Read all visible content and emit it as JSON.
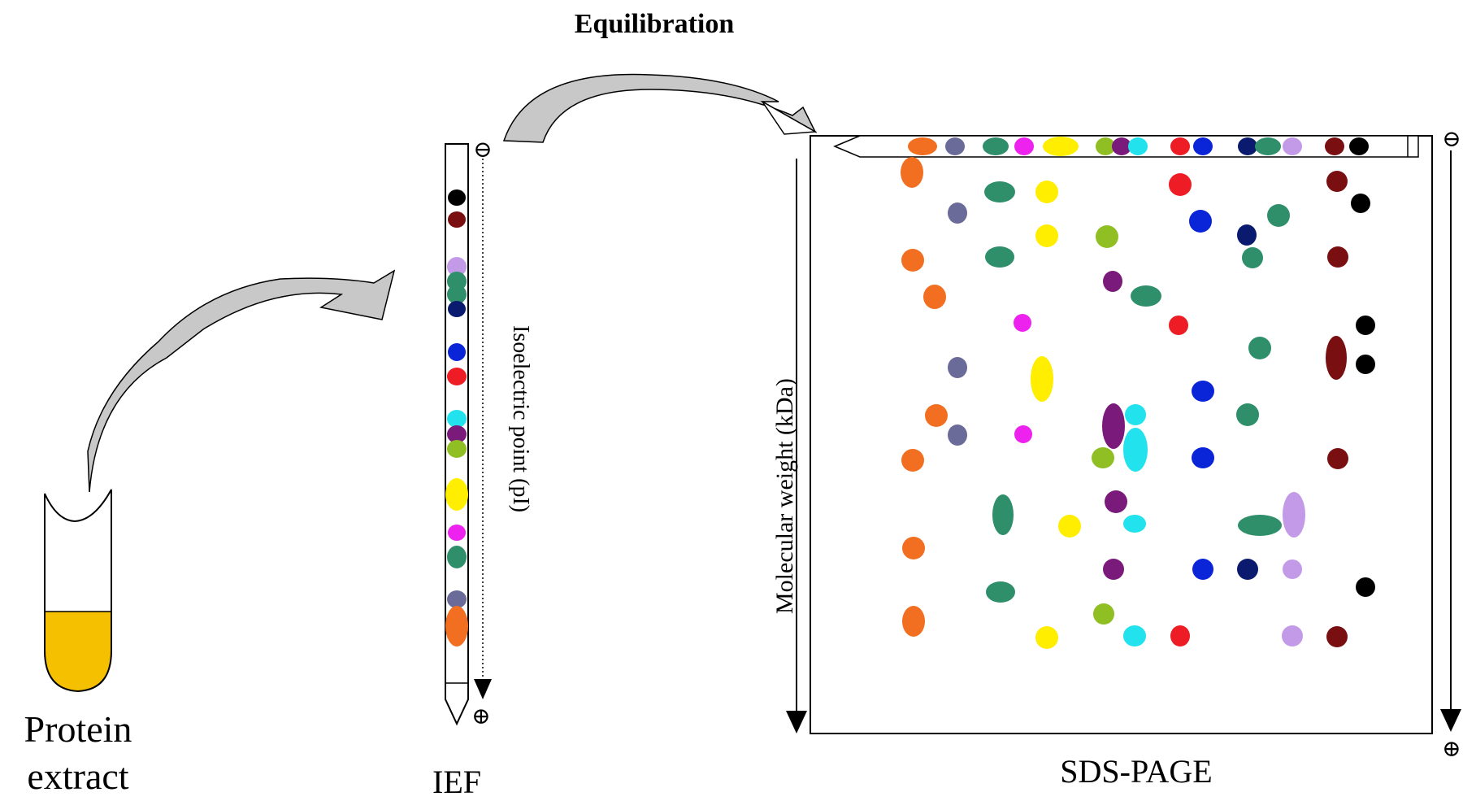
{
  "labels": {
    "protein_extract_line1": "Protein",
    "protein_extract_line2": "extract",
    "ief": "IEF",
    "equilibration": "Equilibration",
    "sds_page": "SDS-PAGE",
    "isoelectric_point": "Isoelectric point (pI)",
    "molecular_weight": "Molecular weight (kDa)",
    "cathode_symbol": "⊖",
    "anode_symbol": "⊕"
  },
  "colors": {
    "orange": "#f26f21",
    "slate": "#6b6b9a",
    "teal": "#2f8f6a",
    "magenta": "#ee22ee",
    "yellow": "#ffee00",
    "lime": "#8fbf22",
    "purple": "#7a1a7a",
    "cyan": "#22e2ee",
    "red": "#ee1c24",
    "blue": "#0a24d8",
    "navy": "#0a1a6e",
    "lavender": "#c29ae8",
    "maroon": "#7a0f12",
    "black": "#000000",
    "tube_liquid": "#f5c000",
    "arrow_fill": "#c8c8c8"
  }
}
